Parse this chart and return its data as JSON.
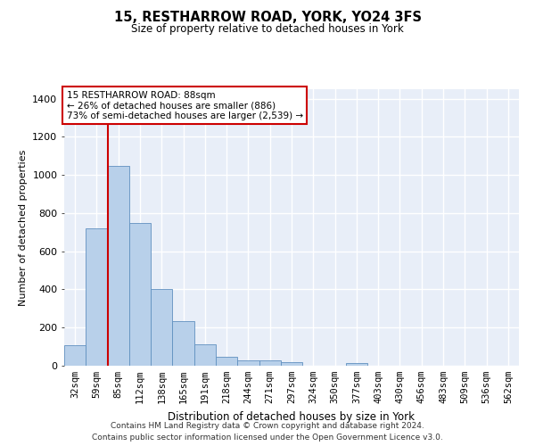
{
  "title_line1": "15, RESTHARROW ROAD, YORK, YO24 3FS",
  "title_line2": "Size of property relative to detached houses in York",
  "xlabel": "Distribution of detached houses by size in York",
  "ylabel": "Number of detached properties",
  "footnote1": "Contains HM Land Registry data © Crown copyright and database right 2024.",
  "footnote2": "Contains public sector information licensed under the Open Government Licence v3.0.",
  "categories": [
    "32sqm",
    "59sqm",
    "85sqm",
    "112sqm",
    "138sqm",
    "165sqm",
    "191sqm",
    "218sqm",
    "244sqm",
    "271sqm",
    "297sqm",
    "324sqm",
    "350sqm",
    "377sqm",
    "403sqm",
    "430sqm",
    "456sqm",
    "483sqm",
    "509sqm",
    "536sqm",
    "562sqm"
  ],
  "values": [
    107,
    720,
    1050,
    748,
    400,
    235,
    113,
    45,
    28,
    28,
    20,
    0,
    0,
    14,
    0,
    0,
    0,
    0,
    0,
    0,
    0
  ],
  "bar_color": "#b8d0ea",
  "bar_edge_color": "#6090c0",
  "background_color": "#e8eef8",
  "grid_color": "#ffffff",
  "vline_color": "#cc0000",
  "box_text_line1": "15 RESTHARROW ROAD: 88sqm",
  "box_text_line2": "← 26% of detached houses are smaller (886)",
  "box_text_line3": "73% of semi-detached houses are larger (2,539) →",
  "box_color": "#cc0000",
  "ylim": [
    0,
    1450
  ],
  "yticks": [
    0,
    200,
    400,
    600,
    800,
    1000,
    1200,
    1400
  ]
}
